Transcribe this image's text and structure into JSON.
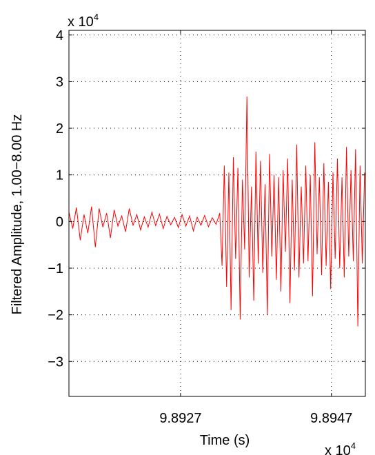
{
  "chart_data": {
    "type": "line",
    "title": "",
    "xlabel": "Time (s)",
    "ylabel": "Filtered Amplitude, 1.00−8.00 Hz",
    "x_exponent_label": "x 10",
    "x_exponent_power": "4",
    "y_exponent_label": "x 10",
    "y_exponent_power": "4",
    "xlim": [
      98912.2,
      98951.5
    ],
    "ylim": [
      -37500,
      41000
    ],
    "xticks": [
      98927,
      98947
    ],
    "xtick_labels": [
      "9.8927",
      "9.8947"
    ],
    "yticks": [
      -30000,
      -20000,
      -10000,
      0,
      10000,
      20000,
      30000,
      40000
    ],
    "ytick_labels": [
      "−3",
      "−2",
      "−1",
      "0",
      "1",
      "2",
      "3",
      "4"
    ],
    "grid": true,
    "grid_style": "dotted",
    "series_color": "#ff0000",
    "series": [
      {
        "x": [
          98912.2,
          98912.7,
          98913.2,
          98913.7,
          98914.2,
          98914.7,
          98915.2,
          98915.7,
          98916.2,
          98916.7,
          98917.2,
          98917.7,
          98918.2,
          98918.7,
          98919.2,
          98919.7,
          98920.2,
          98920.7,
          98921.2,
          98921.7,
          98922.2,
          98922.7,
          98923.2,
          98923.7,
          98924.2,
          98924.7,
          98925.2,
          98925.7,
          98926.2,
          98926.7,
          98927.2,
          98927.7,
          98928.2,
          98928.7,
          98929.2,
          98929.7,
          98930.2,
          98930.7,
          98931.2,
          98931.7,
          98932.2,
          98932.5,
          98932.8,
          98933.1,
          98933.4,
          98933.7,
          98934.0,
          98934.3,
          98934.6,
          98934.9,
          98935.2,
          98935.5,
          98935.8,
          98936.1,
          98936.4,
          98936.7,
          98937.0,
          98937.3,
          98937.6,
          98937.9,
          98938.2,
          98938.5,
          98938.8,
          98939.1,
          98939.4,
          98939.7,
          98940.0,
          98940.3,
          98940.6,
          98940.9,
          98941.2,
          98941.5,
          98941.8,
          98942.1,
          98942.4,
          98942.7,
          98943.0,
          98943.3,
          98943.6,
          98943.9,
          98944.2,
          98944.5,
          98944.8,
          98945.1,
          98945.4,
          98945.7,
          98946.0,
          98946.3,
          98946.6,
          98946.9,
          98947.2,
          98947.5,
          98947.8,
          98948.1,
          98948.4,
          98948.7,
          98949.0,
          98949.3,
          98949.6,
          98949.9,
          98950.2,
          98950.5,
          98950.8,
          98951.1,
          98951.4
        ],
        "y": [
          2000,
          -1500,
          3000,
          -4000,
          1500,
          -2500,
          3200,
          -5500,
          2800,
          -1200,
          1800,
          -3500,
          2500,
          -1000,
          1200,
          -2200,
          2800,
          -800,
          1500,
          -1800,
          1000,
          -1200,
          2000,
          -900,
          1600,
          -1500,
          1100,
          -700,
          900,
          -1300,
          1500,
          -1000,
          1200,
          -2000,
          900,
          -800,
          1300,
          -1100,
          800,
          -600,
          1800,
          -9500,
          12000,
          -14000,
          10500,
          -19000,
          13800,
          -8000,
          11500,
          -21000,
          9000,
          -6000,
          26800,
          -12000,
          7500,
          -17000,
          15000,
          -9000,
          13000,
          -11000,
          8000,
          -20000,
          14500,
          -7500,
          10000,
          -12500,
          9500,
          -15000,
          11000,
          -6500,
          13500,
          -17500,
          9000,
          -10500,
          16500,
          -12000,
          7500,
          -9000,
          12000,
          -8500,
          10000,
          -16000,
          17000,
          -7000,
          9500,
          -11500,
          12500,
          -9500,
          8500,
          -14500,
          10500,
          -8000,
          13500,
          -10000,
          9500,
          -12000,
          16000,
          -7500,
          11000,
          -8500,
          15500,
          -22500,
          12000,
          -9000,
          10500
        ]
      }
    ]
  }
}
